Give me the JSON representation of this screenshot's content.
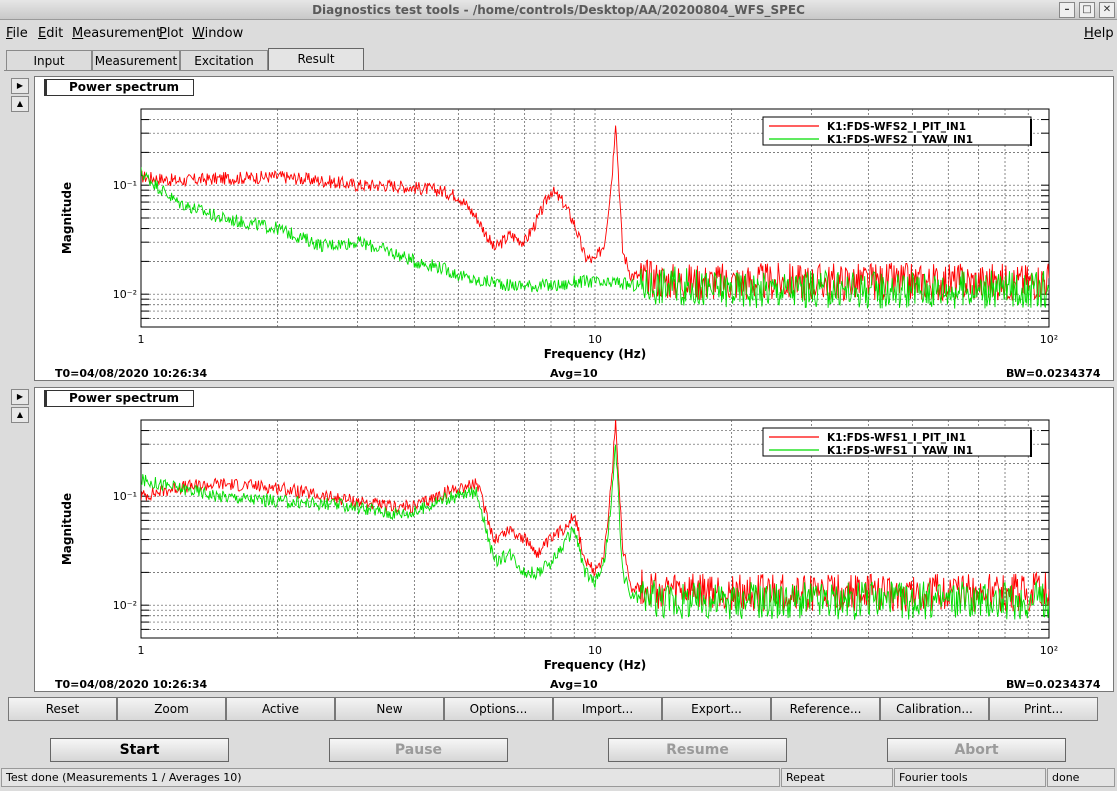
{
  "window": {
    "title": "Diagnostics test tools - /home/controls/Desktop/AA/20200804_WFS_SPEC",
    "min": "–",
    "max": "□",
    "close": "✕"
  },
  "menu": {
    "file": {
      "u": "F",
      "rest": "ile"
    },
    "edit": {
      "u": "E",
      "rest": "dit"
    },
    "measurement": {
      "u": "M",
      "rest": "easurement"
    },
    "plot": {
      "u": "P",
      "rest": "lot"
    },
    "window": {
      "u": "W",
      "rest": "indow"
    },
    "help": {
      "u": "H",
      "rest": "elp"
    }
  },
  "tabs": [
    "Input",
    "Measurement",
    "Excitation",
    "Result"
  ],
  "panel_arrows": {
    "right": "▶",
    "up": "▲"
  },
  "panels": [
    {
      "title": "Power spectrum",
      "t0": "T0=04/08/2020 10:26:34",
      "avg": "Avg=10",
      "bw": "BW=0.0234374",
      "chart_data": {
        "type": "line",
        "xlabel": "Frequency (Hz)",
        "ylabel": "Magnitude",
        "xscale": "log",
        "yscale": "log",
        "xlim": [
          1,
          100
        ],
        "ylim": [
          0.005,
          0.5
        ],
        "x_ticks": [
          "1",
          "10",
          "10²"
        ],
        "y_ticks": [
          "10⁻²",
          "10⁻¹"
        ],
        "grid": true,
        "legend_position": "top-right",
        "series": [
          {
            "name": "K1:FDS-WFS2_I_PIT_IN1",
            "color": "#ff0000",
            "x": [
              1,
              1.2,
              1.5,
              2,
              2.5,
              3,
              3.5,
              4,
              4.5,
              5,
              5.5,
              6,
              6.5,
              7,
              7.5,
              8,
              8.5,
              9,
              9.5,
              10,
              10.5,
              10.9,
              11.1,
              11.5,
              12,
              15,
              18,
              19,
              20,
              23,
              30,
              40,
              50,
              51,
              60,
              70,
              80,
              90,
              100
            ],
            "y": [
              0.12,
              0.11,
              0.115,
              0.12,
              0.11,
              0.1,
              0.1,
              0.095,
              0.09,
              0.08,
              0.05,
              0.026,
              0.035,
              0.03,
              0.05,
              0.09,
              0.07,
              0.045,
              0.022,
              0.02,
              0.03,
              0.12,
              0.4,
              0.025,
              0.015,
              0.013,
              0.013,
              0.013,
              0.013,
              0.013,
              0.013,
              0.013,
              0.013,
              0.013,
              0.013,
              0.013,
              0.013,
              0.013,
              0.014
            ]
          },
          {
            "name": "K1:FDS-WFS2_I_YAW_IN1",
            "color": "#00dd00",
            "x": [
              1,
              1.2,
              1.5,
              2,
              2.5,
              3,
              3.5,
              4,
              4.5,
              5,
              5.5,
              6,
              6.5,
              7,
              7.5,
              8,
              8.5,
              9,
              9.5,
              10,
              10.5,
              11,
              12,
              15,
              18,
              19,
              20,
              23,
              30,
              40,
              50,
              51,
              60,
              70,
              80,
              90,
              100
            ],
            "y": [
              0.13,
              0.07,
              0.05,
              0.04,
              0.028,
              0.03,
              0.025,
              0.02,
              0.018,
              0.015,
              0.013,
              0.013,
              0.012,
              0.012,
              0.012,
              0.012,
              0.012,
              0.013,
              0.013,
              0.013,
              0.012,
              0.013,
              0.012,
              0.012,
              0.011,
              0.011,
              0.011,
              0.011,
              0.011,
              0.011,
              0.011,
              0.011,
              0.011,
              0.011,
              0.011,
              0.011,
              0.011
            ]
          }
        ]
      }
    },
    {
      "title": "Power spectrum",
      "t0": "T0=04/08/2020 10:26:34",
      "avg": "Avg=10",
      "bw": "BW=0.0234374",
      "chart_data": {
        "type": "line",
        "xlabel": "Frequency (Hz)",
        "ylabel": "Magnitude",
        "xscale": "log",
        "yscale": "log",
        "xlim": [
          1,
          100
        ],
        "ylim": [
          0.005,
          0.5
        ],
        "x_ticks": [
          "1",
          "10",
          "10²"
        ],
        "y_ticks": [
          "10⁻²",
          "10⁻¹"
        ],
        "grid": true,
        "legend_position": "top-right",
        "series": [
          {
            "name": "K1:FDS-WFS1_I_PIT_IN1",
            "color": "#ff0000",
            "x": [
              1,
              1.2,
              1.5,
              2,
              2.5,
              3,
              3.5,
              4,
              4.5,
              5,
              5.5,
              6,
              6.5,
              7,
              7.5,
              8,
              8.5,
              9,
              9.5,
              10,
              10.5,
              10.9,
              11.1,
              11.5,
              12,
              15,
              18,
              19,
              20,
              23,
              30,
              40,
              50,
              51,
              60,
              70,
              80,
              90,
              100
            ],
            "y": [
              0.1,
              0.12,
              0.13,
              0.12,
              0.1,
              0.09,
              0.08,
              0.08,
              0.1,
              0.12,
              0.13,
              0.04,
              0.05,
              0.04,
              0.03,
              0.04,
              0.05,
              0.07,
              0.025,
              0.02,
              0.03,
              0.15,
              0.5,
              0.035,
              0.015,
              0.013,
              0.013,
              0.013,
              0.013,
              0.013,
              0.013,
              0.013,
              0.013,
              0.013,
              0.013,
              0.013,
              0.013,
              0.013,
              0.014
            ]
          },
          {
            "name": "K1:FDS-WFS1_I_YAW_IN1",
            "color": "#00dd00",
            "x": [
              1,
              1.2,
              1.5,
              2,
              2.5,
              3,
              3.5,
              4,
              4.5,
              5,
              5.5,
              6,
              6.5,
              7,
              7.5,
              8,
              8.5,
              9,
              9.5,
              10,
              10.5,
              10.9,
              11.1,
              11.5,
              12,
              15,
              18,
              19,
              20,
              23,
              30,
              40,
              50,
              51,
              60,
              70,
              80,
              90,
              100
            ],
            "y": [
              0.14,
              0.12,
              0.1,
              0.09,
              0.085,
              0.08,
              0.07,
              0.07,
              0.09,
              0.1,
              0.11,
              0.025,
              0.03,
              0.02,
              0.02,
              0.025,
              0.035,
              0.05,
              0.02,
              0.016,
              0.025,
              0.1,
              0.3,
              0.02,
              0.012,
              0.011,
              0.011,
              0.011,
              0.011,
              0.011,
              0.011,
              0.011,
              0.011,
              0.011,
              0.011,
              0.011,
              0.011,
              0.011,
              0.011
            ]
          }
        ]
      }
    }
  ],
  "buttons": [
    "Reset",
    "Zoom",
    "Active",
    "New",
    "Options...",
    "Import...",
    "Export...",
    "Reference...",
    "Calibration...",
    "Print..."
  ],
  "controls": {
    "start": "Start",
    "pause": "Pause",
    "resume": "Resume",
    "abort": "Abort"
  },
  "status": {
    "message": "Test done (Measurements 1 / Averages 10)",
    "repeat": "Repeat",
    "tool": "Fourier tools",
    "state": "done"
  }
}
